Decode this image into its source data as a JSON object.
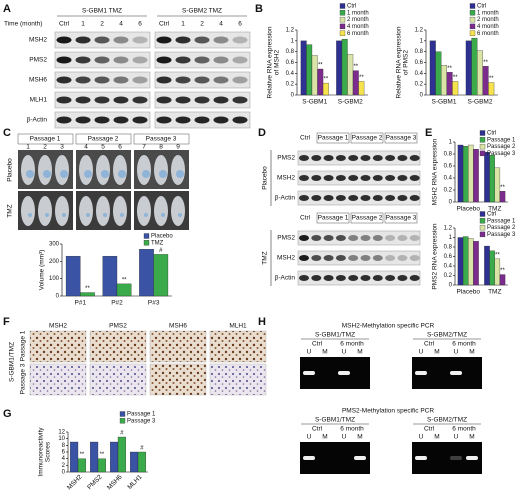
{
  "panel_labels": [
    "A",
    "B",
    "C",
    "D",
    "E",
    "F",
    "G",
    "H"
  ],
  "A": {
    "time_label": "Time (month)",
    "groups": [
      "S-GBM1 TMZ",
      "S-GBM2 TMZ"
    ],
    "lanes": [
      "Ctrl",
      "1",
      "2",
      "4",
      "6"
    ],
    "rows": [
      "MSH2",
      "PMS2",
      "MSH6",
      "MLH1",
      "β-Actin"
    ]
  },
  "C": {
    "passages": [
      "Passage 1",
      "Passage 2",
      "Passage 3"
    ],
    "mice": [
      "1",
      "2",
      "3",
      "4",
      "5",
      "6",
      "7",
      "8",
      "9"
    ],
    "rows": [
      "Placebo",
      "TMZ"
    ]
  },
  "D": {
    "ctrl": "Ctrl",
    "passages": [
      "Passage 1",
      "Passage 2",
      "Passage 3"
    ],
    "groups": [
      "Placebo",
      "TMZ"
    ],
    "rows": [
      "PMS2",
      "MSH2",
      "β-Actin"
    ]
  },
  "F": {
    "columns": [
      "MSH2",
      "PMS2",
      "MSH6",
      "MLH1"
    ],
    "rows": [
      "Passage 1",
      "Passage 3"
    ],
    "group": "S-GBM1/TMZ"
  },
  "H": {
    "gels": [
      {
        "title": "MSH2-Methylation specific PCR",
        "lines": [
          "S-GBM1/TMZ",
          "S-GBM2/TMZ"
        ]
      },
      {
        "title": "PMS2-Methylation specific PCR",
        "lines": [
          "S-GBM1/TMZ",
          "S-GBM2/TMZ"
        ]
      }
    ],
    "times": [
      "Ctrl",
      "6 month"
    ],
    "lanes": [
      "U",
      "M"
    ]
  },
  "chart_data": [
    {
      "type": "bar",
      "ylabel": [
        "Relative RNA expression",
        "of MSH2"
      ],
      "categories": [
        "S-GBM1",
        "S-GBM2"
      ],
      "series": [
        {
          "name": "Ctrl",
          "color": "#2e3192",
          "values": [
            1.0,
            1.0
          ]
        },
        {
          "name": "1 month",
          "color": "#3aaa4a",
          "values": [
            0.93,
            1.03
          ]
        },
        {
          "name": "2 month",
          "color": "#d9e4a6",
          "values": [
            0.73,
            0.75
          ]
        },
        {
          "name": "4 month",
          "color": "#7b2c8c",
          "values": [
            0.48,
            0.45
          ]
        },
        {
          "name": "6 month",
          "color": "#f5e24d",
          "values": [
            0.22,
            0.25
          ]
        }
      ],
      "ylim": [
        0,
        1.2
      ],
      "yticks": [
        0,
        0.2,
        0.4,
        0.6,
        0.8,
        1,
        1.2
      ],
      "legend": "upper right",
      "annotations": [
        {
          "text": "**",
          "category": "S-GBM1",
          "series": "4 month"
        },
        {
          "text": "**",
          "category": "S-GBM1",
          "series": "6 month"
        },
        {
          "text": "**",
          "category": "S-GBM2",
          "series": "4 month"
        },
        {
          "text": "**",
          "category": "S-GBM2",
          "series": "6 month"
        }
      ]
    },
    {
      "type": "bar",
      "ylabel": [
        "Relative RNA expression",
        "of PMS2"
      ],
      "categories": [
        "S-GBM1",
        "S-GBM2"
      ],
      "series": [
        {
          "name": "Ctrl",
          "color": "#2e3192",
          "values": [
            1.0,
            1.0
          ]
        },
        {
          "name": "1 month",
          "color": "#3aaa4a",
          "values": [
            0.8,
            1.05
          ]
        },
        {
          "name": "2 month",
          "color": "#d9e4a6",
          "values": [
            0.55,
            0.82
          ]
        },
        {
          "name": "4 month",
          "color": "#7b2c8c",
          "values": [
            0.42,
            0.53
          ]
        },
        {
          "name": "6 month",
          "color": "#f5e24d",
          "values": [
            0.25,
            0.23
          ]
        }
      ],
      "ylim": [
        0,
        1.2
      ],
      "yticks": [
        0,
        0.2,
        0.4,
        0.6,
        0.8,
        1,
        1.2
      ],
      "legend": "upper right",
      "annotations": [
        {
          "text": "**",
          "category": "S-GBM1",
          "series": "4 month"
        },
        {
          "text": "**",
          "category": "S-GBM1",
          "series": "6 month"
        },
        {
          "text": "**",
          "category": "S-GBM2",
          "series": "4 month"
        },
        {
          "text": "**",
          "category": "S-GBM2",
          "series": "6 month"
        }
      ]
    },
    {
      "type": "bar",
      "ylabel": [
        "Volume (mm³)"
      ],
      "categories": [
        "P#1",
        "P#2",
        "P#3"
      ],
      "series": [
        {
          "name": "Placebo",
          "color": "#3a53a4",
          "values": [
            230,
            230,
            270
          ]
        },
        {
          "name": "TMZ",
          "color": "#3aaa4a",
          "values": [
            20,
            70,
            240
          ]
        }
      ],
      "ylim": [
        0,
        300
      ],
      "yticks": [
        0,
        100,
        200,
        300
      ],
      "legend": "upper right",
      "annotations": [
        {
          "text": "**",
          "category": "P#1",
          "series": "TMZ"
        },
        {
          "text": "**",
          "category": "P#2",
          "series": "TMZ"
        },
        {
          "text": "#",
          "category": "P#3",
          "series": "TMZ"
        }
      ]
    },
    {
      "type": "bar",
      "ylabel": [
        "MSH2 RNA expression"
      ],
      "categories": [
        "Placebo",
        "TMZ"
      ],
      "series": [
        {
          "name": "Ctrl",
          "color": "#2e3192",
          "values": [
            0.95,
            0.83
          ]
        },
        {
          "name": "Passage 1",
          "color": "#3aaa4a",
          "values": [
            0.93,
            0.78
          ]
        },
        {
          "name": "Passage 2",
          "color": "#d9e4a6",
          "values": [
            0.95,
            0.57
          ]
        },
        {
          "name": "Passage 3",
          "color": "#7b2c8c",
          "values": [
            0.88,
            0.18
          ]
        }
      ],
      "ylim": [
        0,
        1
      ],
      "yticks": [
        0,
        0.2,
        0.4,
        0.6,
        0.8,
        1
      ],
      "legend": "upper right",
      "annotations": [
        {
          "text": "**",
          "category": "TMZ",
          "series": "Passage 3"
        }
      ]
    },
    {
      "type": "bar",
      "ylabel": [
        "PMS2 RNA expression"
      ],
      "categories": [
        "Placebo",
        "TMZ"
      ],
      "series": [
        {
          "name": "Ctrl",
          "color": "#2e3192",
          "values": [
            1.0,
            0.82
          ]
        },
        {
          "name": "Passage 1",
          "color": "#3aaa4a",
          "values": [
            1.02,
            0.72
          ]
        },
        {
          "name": "Passage 2",
          "color": "#d9e4a6",
          "values": [
            0.98,
            0.55
          ]
        },
        {
          "name": "Passage 3",
          "color": "#7b2c8c",
          "values": [
            0.92,
            0.22
          ]
        }
      ],
      "ylim": [
        0,
        1.2
      ],
      "yticks": [
        0,
        0.2,
        0.4,
        0.6,
        0.8,
        1,
        1.2
      ],
      "legend": "upper right",
      "annotations": [
        {
          "text": "**",
          "category": "TMZ",
          "series": "Passage 2"
        },
        {
          "text": "**",
          "category": "TMZ",
          "series": "Passage 3"
        }
      ]
    },
    {
      "type": "bar",
      "ylabel": [
        "Immunoreactivity",
        "Scores"
      ],
      "categories": [
        "MSH2",
        "PMS2",
        "MSH6",
        "MLH1"
      ],
      "series": [
        {
          "name": "Passage 1",
          "color": "#3a53a4",
          "values": [
            9,
            9,
            9,
            6
          ]
        },
        {
          "name": "Passage 3",
          "color": "#3aaa4a",
          "values": [
            4,
            4,
            10.5,
            6
          ]
        }
      ],
      "ylim": [
        0,
        12
      ],
      "yticks": [
        0,
        2,
        4,
        6,
        8,
        10,
        12
      ],
      "legend": "upper right",
      "annotations": [
        {
          "text": "**",
          "category": "MSH2",
          "series": "Passage 3"
        },
        {
          "text": "**",
          "category": "PMS2",
          "series": "Passage 3"
        },
        {
          "text": "#",
          "category": "MSH6",
          "series": "Passage 3"
        },
        {
          "text": "#",
          "category": "MLH1",
          "series": "Passage 3"
        }
      ]
    }
  ]
}
